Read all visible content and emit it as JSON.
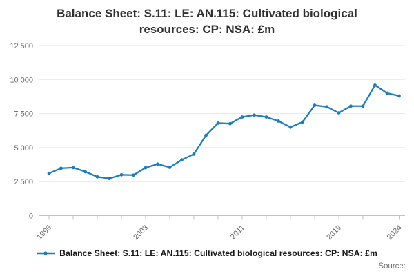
{
  "title": "Balance Sheet: S.11: LE: AN.115: Cultivated biological resources: CP: NSA: £m",
  "legend": {
    "label": "Balance Sheet: S.11: LE: AN.115: Cultivated biological resources: CP: NSA: £m"
  },
  "footer": {
    "source_label": "Source:"
  },
  "colors": {
    "line": "#1b7dbe",
    "axis": "#b6c4e2",
    "grid": "#e7e7e7",
    "tick_text": "#666666",
    "title_text": "#303030",
    "legend_text": "#1a1a1a",
    "source_text": "#707070"
  },
  "chart_data": {
    "type": "line",
    "title": "Balance Sheet: S.11: LE: AN.115: Cultivated biological resources: CP: NSA: £m",
    "xlabel": "",
    "ylabel": "",
    "x": [
      1995,
      1996,
      1997,
      1998,
      1999,
      2000,
      2001,
      2002,
      2003,
      2004,
      2005,
      2006,
      2007,
      2008,
      2009,
      2010,
      2011,
      2012,
      2013,
      2014,
      2015,
      2016,
      2017,
      2018,
      2019,
      2020,
      2021,
      2022,
      2023,
      2024
    ],
    "series": [
      {
        "name": "Balance Sheet: S.11: LE: AN.115: Cultivated biological resources: CP: NSA: £m",
        "values": [
          3100,
          3480,
          3530,
          3230,
          2850,
          2730,
          3000,
          2980,
          3520,
          3790,
          3550,
          4100,
          4520,
          5900,
          6800,
          6760,
          7250,
          7390,
          7250,
          6950,
          6500,
          6880,
          8110,
          8000,
          7550,
          8050,
          8050,
          9590,
          9000,
          8800
        ]
      }
    ],
    "ylim": [
      0,
      12500
    ],
    "yticks": [
      0,
      2500,
      5000,
      7500,
      10000,
      12500
    ],
    "ytick_labels": [
      "0",
      "2 500",
      "5 000",
      "7 500",
      "10 000",
      "12 500"
    ],
    "xtick_minor_interval": 2,
    "xtick_labeled": [
      1995,
      2003,
      2011,
      2019,
      2024
    ],
    "grid": "horizontal-only",
    "legend_position": "bottom",
    "marker": "circle"
  }
}
